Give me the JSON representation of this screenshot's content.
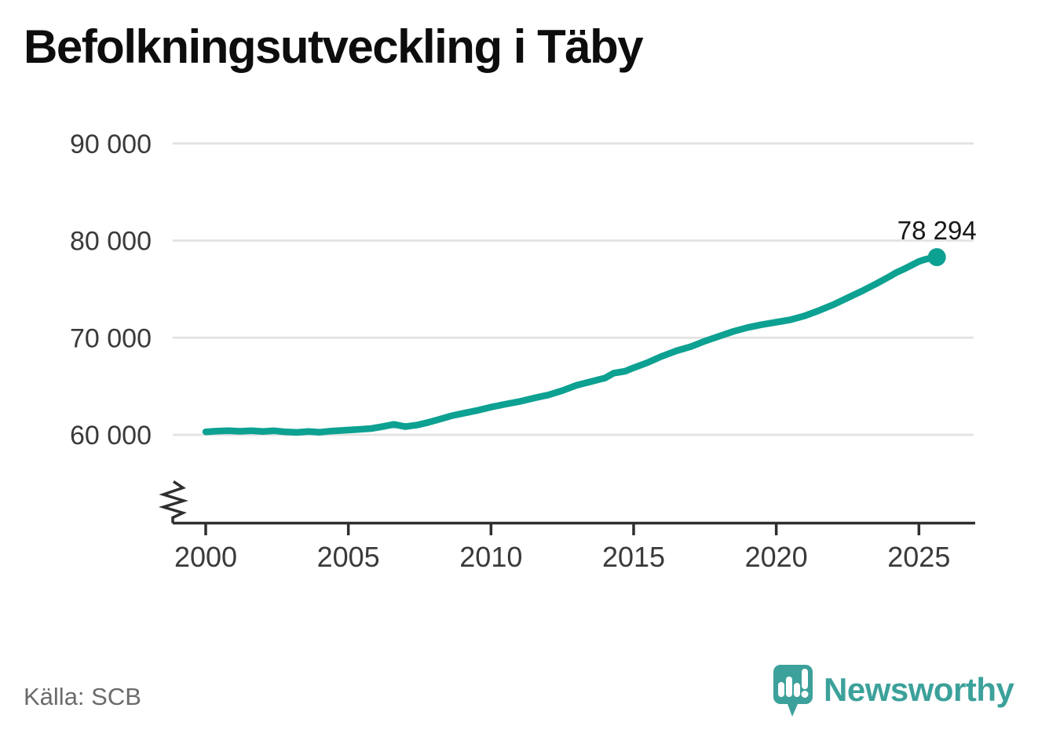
{
  "title": "Befolkningsutveckling i Täby",
  "source": "Källa: SCB",
  "branding": {
    "logo_text": "Newsworthy",
    "logo_icon": "newsworthy-chart-bubble-icon"
  },
  "colors": {
    "line": "#0da192",
    "grid": "#e2e2e2",
    "axis": "#2f2f2f",
    "tick_label": "#3a3a3a",
    "title": "#0d0d0d",
    "source": "#6b6b6b",
    "brand": "#3ca19a"
  },
  "chart_data": {
    "type": "line",
    "title": "Befolkningsutveckling i Täby",
    "xlabel": "",
    "ylabel": "",
    "grid": "horizontal",
    "axis_break": true,
    "legend": "none",
    "x_ticks": [
      "2000",
      "2005",
      "2010",
      "2015",
      "2020",
      "2025"
    ],
    "x_tick_values": [
      2000,
      2005,
      2010,
      2015,
      2020,
      2025
    ],
    "y_ticks": [
      "60 000",
      "70 000",
      "80 000",
      "90 000"
    ],
    "y_tick_values": [
      60000,
      70000,
      80000,
      90000
    ],
    "xlim": [
      1998.85,
      2027
    ],
    "ylim": [
      60000,
      90000
    ],
    "end_label": "78 294",
    "end_value": 78294,
    "series": [
      {
        "points": [
          [
            2000.0,
            60310
          ],
          [
            2000.4,
            60390
          ],
          [
            2000.8,
            60420
          ],
          [
            2001.2,
            60360
          ],
          [
            2001.6,
            60420
          ],
          [
            2002.0,
            60350
          ],
          [
            2002.4,
            60420
          ],
          [
            2002.8,
            60300
          ],
          [
            2003.2,
            60250
          ],
          [
            2003.6,
            60340
          ],
          [
            2004.0,
            60270
          ],
          [
            2004.4,
            60390
          ],
          [
            2004.9,
            60480
          ],
          [
            2005.3,
            60550
          ],
          [
            2005.8,
            60650
          ],
          [
            2006.2,
            60850
          ],
          [
            2006.6,
            61075
          ],
          [
            2007.0,
            60840
          ],
          [
            2007.4,
            61000
          ],
          [
            2007.8,
            61280
          ],
          [
            2008.2,
            61600
          ],
          [
            2008.6,
            61950
          ],
          [
            2009.0,
            62200
          ],
          [
            2009.5,
            62500
          ],
          [
            2010.0,
            62850
          ],
          [
            2010.5,
            63150
          ],
          [
            2011.0,
            63430
          ],
          [
            2011.5,
            63780
          ],
          [
            2012.0,
            64100
          ],
          [
            2012.5,
            64550
          ],
          [
            2013.0,
            65100
          ],
          [
            2013.5,
            65480
          ],
          [
            2014.0,
            65850
          ],
          [
            2014.3,
            66350
          ],
          [
            2014.7,
            66550
          ],
          [
            2015.0,
            66900
          ],
          [
            2015.5,
            67450
          ],
          [
            2016.0,
            68100
          ],
          [
            2016.5,
            68650
          ],
          [
            2017.0,
            69080
          ],
          [
            2017.5,
            69650
          ],
          [
            2018.0,
            70150
          ],
          [
            2018.5,
            70650
          ],
          [
            2019.0,
            71050
          ],
          [
            2019.5,
            71350
          ],
          [
            2020.0,
            71600
          ],
          [
            2020.5,
            71850
          ],
          [
            2021.0,
            72250
          ],
          [
            2021.5,
            72800
          ],
          [
            2022.0,
            73400
          ],
          [
            2022.5,
            74100
          ],
          [
            2023.0,
            74800
          ],
          [
            2023.5,
            75550
          ],
          [
            2024.0,
            76350
          ],
          [
            2024.2,
            76700
          ],
          [
            2024.5,
            77100
          ],
          [
            2024.8,
            77550
          ],
          [
            2025.0,
            77850
          ],
          [
            2025.2,
            78050
          ],
          [
            2025.35,
            78150
          ],
          [
            2025.5,
            78120
          ],
          [
            2025.63,
            78294
          ]
        ]
      }
    ]
  }
}
